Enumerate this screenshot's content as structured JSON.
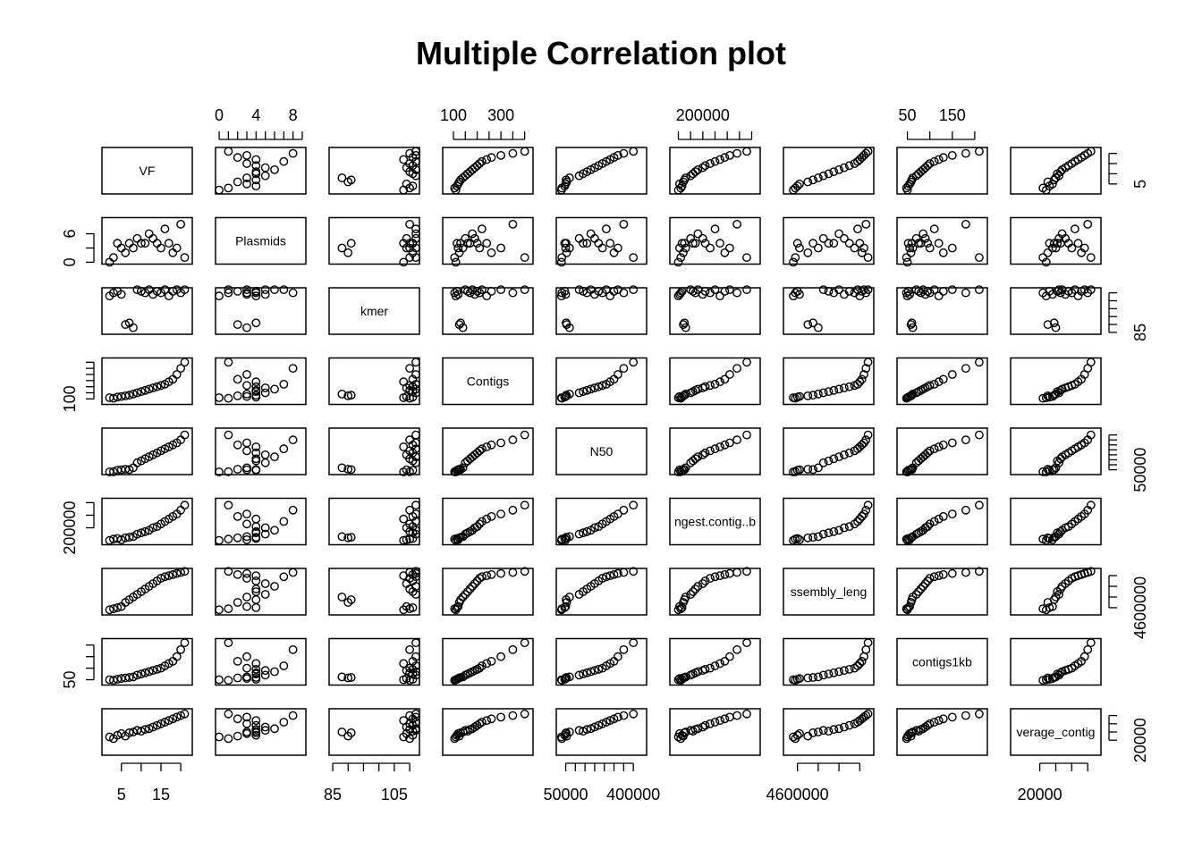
{
  "chart_data": {
    "type": "scatter",
    "title": "Multiple Correlation plot",
    "variables": [
      "VF",
      "Plasmids",
      "kmer",
      "Contigs",
      "N50",
      "Longest.contig..bp.",
      "Assembly_length",
      "contigs1kb",
      "Average_contig"
    ],
    "variable_labels": [
      "VF",
      "Plasmids",
      "kmer",
      "Contigs",
      "N50",
      "ngest.contig..b",
      "ssembly_leng",
      "contigs1kb",
      "verage_contig"
    ],
    "ranges": [
      [
        1,
        22
      ],
      [
        0,
        9
      ],
      [
        85,
        112
      ],
      [
        70,
        420
      ],
      [
        20000,
        450000
      ],
      [
        80000,
        420000
      ],
      [
        4500000,
        5300000
      ],
      [
        35,
        220
      ],
      [
        12000,
        38000
      ]
    ],
    "axis_ticks": {
      "top": [
        {
          "var": 1,
          "ticks": [
            0,
            1,
            2,
            3,
            4,
            5,
            6,
            7,
            8,
            9
          ],
          "labels": [
            {
              "v": 0,
              "t": "0"
            },
            {
              "v": 4,
              "t": "4"
            },
            {
              "v": 8,
              "t": "8"
            }
          ]
        },
        {
          "var": 3,
          "ticks": [
            100,
            150,
            200,
            250,
            300,
            350,
            400
          ],
          "labels": [
            {
              "v": 100,
              "t": "100"
            },
            {
              "v": 300,
              "t": "300"
            }
          ]
        },
        {
          "var": 5,
          "ticks": [
            100000,
            150000,
            200000,
            250000,
            300000,
            350000,
            400000
          ],
          "labels": [
            {
              "v": 200000,
              "t": "200000"
            }
          ]
        },
        {
          "var": 7,
          "ticks": [
            50,
            100,
            150,
            200
          ],
          "labels": [
            {
              "v": 50,
              "t": "50"
            },
            {
              "v": 150,
              "t": "150"
            }
          ]
        }
      ],
      "bottom": [
        {
          "var": 0,
          "ticks": [
            5,
            10,
            15,
            20
          ],
          "labels": [
            {
              "v": 5,
              "t": "5"
            },
            {
              "v": 15,
              "t": "15"
            }
          ]
        },
        {
          "var": 2,
          "ticks": [
            85,
            90,
            95,
            100,
            105,
            110
          ],
          "labels": [
            {
              "v": 85,
              "t": "85"
            },
            {
              "v": 105,
              "t": "105"
            }
          ]
        },
        {
          "var": 4,
          "ticks": [
            50000,
            100000,
            150000,
            200000,
            250000,
            300000,
            350000,
            400000
          ],
          "labels": [
            {
              "v": 50000,
              "t": "50000"
            },
            {
              "v": 400000,
              "t": "400000"
            }
          ]
        },
        {
          "var": 6,
          "ticks": [
            4600000,
            4800000,
            5000000,
            5200000
          ],
          "labels": [
            {
              "v": 4600000,
              "t": "4600000"
            }
          ]
        },
        {
          "var": 8,
          "ticks": [
            20000,
            25000,
            30000,
            35000
          ],
          "labels": [
            {
              "v": 20000,
              "t": "20000"
            }
          ]
        }
      ],
      "left": [
        {
          "var": 1,
          "ticks": [
            0,
            3,
            6
          ],
          "labels": [
            {
              "v": 0,
              "t": "0"
            },
            {
              "v": 6,
              "t": "6"
            }
          ]
        },
        {
          "var": 3,
          "ticks": [
            100,
            150,
            200,
            250,
            300,
            350,
            400
          ],
          "labels": [
            {
              "v": 100,
              "t": "100"
            }
          ]
        },
        {
          "var": 5,
          "ticks": [
            200000,
            300000,
            400000
          ],
          "labels": [
            {
              "v": 200000,
              "t": "200000"
            }
          ]
        },
        {
          "var": 7,
          "ticks": [
            50,
            100,
            150,
            200
          ],
          "labels": [
            {
              "v": 50,
              "t": "50"
            }
          ]
        }
      ],
      "right": [
        {
          "var": 0,
          "ticks": [
            5,
            10,
            15,
            20
          ],
          "labels": [
            {
              "v": 5,
              "t": "5"
            }
          ]
        },
        {
          "var": 2,
          "ticks": [
            85,
            90,
            95,
            100,
            105,
            110
          ],
          "labels": [
            {
              "v": 85,
              "t": "85"
            }
          ]
        },
        {
          "var": 4,
          "ticks": [
            50000,
            100000,
            150000,
            200000,
            250000,
            300000,
            350000,
            400000
          ],
          "labels": [
            {
              "v": 50000,
              "t": "50000"
            }
          ]
        },
        {
          "var": 6,
          "ticks": [
            4600000,
            4800000,
            5000000,
            5200000
          ],
          "labels": [
            {
              "v": 4600000,
              "t": "4600000"
            }
          ]
        },
        {
          "var": 8,
          "ticks": [
            20000,
            25000,
            30000,
            35000
          ],
          "labels": [
            {
              "v": 20000,
              "t": "20000"
            }
          ]
        }
      ]
    },
    "observations": [
      [
        2,
        0,
        108,
        110,
        28000,
        100000,
        4560000,
        50,
        22000
      ],
      [
        3,
        1,
        110,
        105,
        30000,
        110000,
        4580000,
        48,
        21000
      ],
      [
        4,
        4,
        111,
        115,
        45000,
        115000,
        4600000,
        52,
        23000
      ],
      [
        5,
        3,
        109,
        120,
        50000,
        105000,
        4620000,
        55,
        24000
      ],
      [
        6,
        2,
        90,
        125,
        55000,
        120000,
        4700000,
        58,
        22500
      ],
      [
        7,
        4,
        91,
        130,
        52000,
        125000,
        4750000,
        60,
        24500
      ],
      [
        8,
        3,
        88,
        140,
        70000,
        130000,
        4800000,
        62,
        25000
      ],
      [
        9,
        5,
        112,
        150,
        120000,
        150000,
        4850000,
        70,
        26000
      ],
      [
        10,
        4,
        111,
        160,
        140000,
        160000,
        4900000,
        75,
        25500
      ],
      [
        11,
        4,
        110,
        170,
        160000,
        170000,
        4950000,
        80,
        26500
      ],
      [
        12,
        6,
        112,
        180,
        180000,
        180000,
        5000000,
        85,
        27000
      ],
      [
        13,
        5,
        109,
        190,
        200000,
        200000,
        5050000,
        90,
        28000
      ],
      [
        14,
        4,
        111,
        200,
        220000,
        210000,
        5100000,
        95,
        29000
      ],
      [
        15,
        3,
        110,
        210,
        240000,
        230000,
        5150000,
        100,
        30000
      ],
      [
        16,
        7,
        112,
        220,
        260000,
        250000,
        5180000,
        110,
        31000
      ],
      [
        17,
        4,
        108,
        240,
        280000,
        270000,
        5200000,
        120,
        32000
      ],
      [
        18,
        2,
        111,
        260,
        300000,
        290000,
        5220000,
        130,
        33000
      ],
      [
        19,
        3,
        112,
        300,
        320000,
        310000,
        5240000,
        150,
        34000
      ],
      [
        20,
        8,
        110,
        350,
        350000,
        340000,
        5260000,
        180,
        35000
      ],
      [
        21,
        1,
        112,
        400,
        400000,
        380000,
        5280000,
        210,
        36000
      ]
    ],
    "grid": false,
    "legend": "none"
  }
}
